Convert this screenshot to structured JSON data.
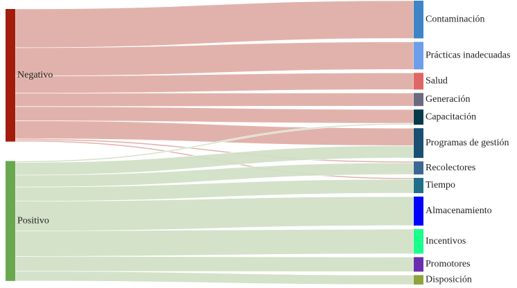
{
  "chart_data": {
    "type": "sankey",
    "sources": [
      {
        "name": "Negativo",
        "color": "#a31c0c"
      },
      {
        "name": "Positivo",
        "color": "#6aa84f"
      }
    ],
    "targets": [
      {
        "name": "Contaminación",
        "color": "#3d85c6"
      },
      {
        "name": "Prácticas inadecuadas",
        "color": "#6d9eeb"
      },
      {
        "name": "Salud",
        "color": "#e06666"
      },
      {
        "name": "Generación",
        "color": "#6b6b80"
      },
      {
        "name": "Capacitación",
        "color": "#073b4c"
      },
      {
        "name": "Programas de gestión",
        "color": "#1b4f72"
      },
      {
        "name": "Recolectores",
        "color": "#3c6894"
      },
      {
        "name": "Tiempo",
        "color": "#1f6f8b"
      },
      {
        "name": "Almacenamiento",
        "color": "#0000ff"
      },
      {
        "name": "Incentivos",
        "color": "#1aff8c"
      },
      {
        "name": "Promotores",
        "color": "#6a2fb0"
      },
      {
        "name": "Disposición",
        "color": "#8fa33d"
      }
    ],
    "link_colors": {
      "Negativo": "#deaba4",
      "Positivo": "#cfe0c4"
    },
    "flows": [
      {
        "source": "Negativo",
        "target": "Contaminación",
        "value": 52
      },
      {
        "source": "Negativo",
        "target": "Prácticas inadecuadas",
        "value": 38
      },
      {
        "source": "Negativo",
        "target": "Salud",
        "value": 23
      },
      {
        "source": "Negativo",
        "target": "Generación",
        "value": 18
      },
      {
        "source": "Negativo",
        "target": "Capacitación",
        "value": 19
      },
      {
        "source": "Negativo",
        "target": "Programas de gestión",
        "value": 24
      },
      {
        "source": "Negativo",
        "target": "Recolectores",
        "value": 2
      },
      {
        "source": "Negativo",
        "target": "Tiempo",
        "value": 2
      },
      {
        "source": "Positivo",
        "target": "Capacitación",
        "value": 2
      },
      {
        "source": "Positivo",
        "target": "Programas de gestión",
        "value": 17
      },
      {
        "source": "Positivo",
        "target": "Recolectores",
        "value": 16
      },
      {
        "source": "Positivo",
        "target": "Tiempo",
        "value": 19
      },
      {
        "source": "Positivo",
        "target": "Almacenamiento",
        "value": 40
      },
      {
        "source": "Positivo",
        "target": "Incentivos",
        "value": 34
      },
      {
        "source": "Positivo",
        "target": "Promotores",
        "value": 20
      },
      {
        "source": "Positivo",
        "target": "Disposición",
        "value": 13
      }
    ]
  }
}
